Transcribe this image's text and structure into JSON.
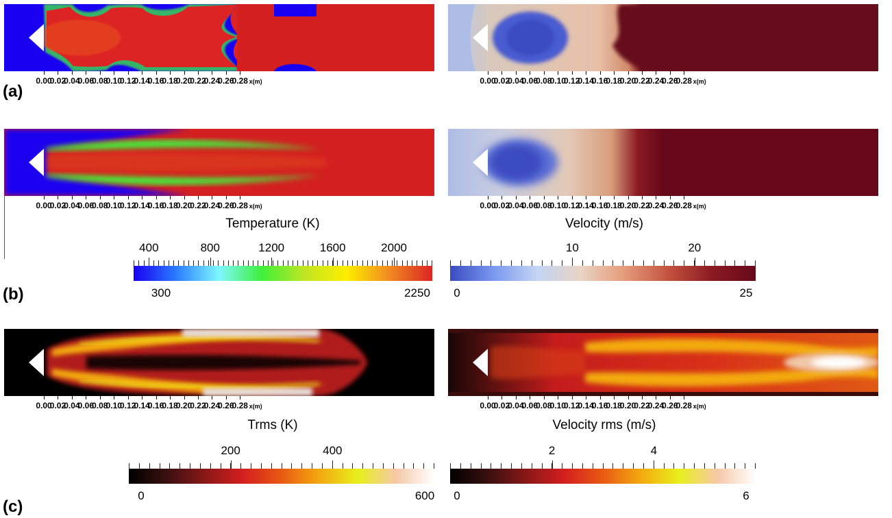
{
  "row_labels": {
    "a": "(a)",
    "b": "(b)",
    "c": "(c)"
  },
  "x_axis": {
    "ticks": [
      "0.00",
      "0.02",
      "0.04",
      "0.06",
      "0.08",
      "0.10",
      "0.12",
      "0.14",
      "0.16",
      "0.18",
      "0.20",
      "0.22",
      "0.24",
      "0.26",
      "0.28"
    ],
    "unit": "x(m)"
  },
  "field_titles": {
    "temperature": "Temperature (K)",
    "velocity": "Velocity (m/s)",
    "trms": "Trms (K)",
    "velocity_rms": "Velocity rms (m/s)"
  },
  "colorbars": {
    "temperature": {
      "range": [
        300,
        2250
      ],
      "min_label": "300",
      "max_label": "2250",
      "top_labels": [
        {
          "value": 400,
          "text": "400"
        },
        {
          "value": 800,
          "text": "800"
        },
        {
          "value": 1200,
          "text": "1200"
        },
        {
          "value": 1600,
          "text": "1600"
        },
        {
          "value": 2000,
          "text": "2000"
        }
      ],
      "colors": [
        "#1a00f0",
        "#2a7dff",
        "#7ff7ff",
        "#3ff03a",
        "#bfe623",
        "#ffee00",
        "#f08a20",
        "#dd2424"
      ]
    },
    "velocity": {
      "range": [
        0,
        25
      ],
      "min_label": "0",
      "max_label": "25",
      "top_labels": [
        {
          "value": 10,
          "text": "10"
        },
        {
          "value": 20,
          "text": "20"
        }
      ],
      "colors": [
        "#3b4cc0",
        "#7a98f0",
        "#c4d5f3",
        "#ead3c3",
        "#e59b7a",
        "#c3533f",
        "#8b1a22",
        "#66081a"
      ]
    },
    "trms": {
      "range": [
        0,
        600
      ],
      "min_label": "0",
      "max_label": "600",
      "top_labels": [
        {
          "value": 200,
          "text": "200"
        },
        {
          "value": 400,
          "text": "400"
        }
      ],
      "colors": [
        "#000000",
        "#3a1010",
        "#8a1818",
        "#d41f1f",
        "#e85a12",
        "#f3aa10",
        "#e8ef1c",
        "#f6c8a8",
        "#ffffff"
      ]
    },
    "velocity_rms": {
      "range": [
        0,
        6
      ],
      "min_label": "0",
      "max_label": "6",
      "top_labels": [
        {
          "value": 2,
          "text": "2"
        },
        {
          "value": 4,
          "text": "4"
        }
      ],
      "colors": [
        "#000000",
        "#3a1010",
        "#8a1818",
        "#d41f1f",
        "#e85a12",
        "#f3aa10",
        "#e8ef1c",
        "#f6c8a8",
        "#ffffff"
      ]
    }
  }
}
